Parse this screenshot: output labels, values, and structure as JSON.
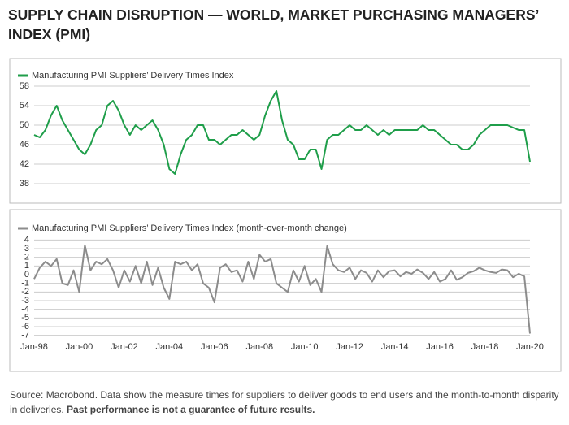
{
  "title": "SUPPLY CHAIN DISRUPTION — WORLD, MARKET PURCHASING MANAGERS’ INDEX (PMI)",
  "footer": {
    "source": "Source: Macrobond. Data show the measure times for suppliers to deliver goods to end users and the month-to-month disparity in deliveries.",
    "disclaimer": "Past performance is not a guarantee of future results."
  },
  "chart_data": [
    {
      "type": "line",
      "grid": true,
      "x": [
        1998,
        1998.25,
        1998.5,
        1998.75,
        1999,
        1999.25,
        1999.5,
        1999.75,
        2000,
        2000.25,
        2000.5,
        2000.75,
        2001,
        2001.25,
        2001.5,
        2001.75,
        2002,
        2002.25,
        2002.5,
        2002.75,
        2003,
        2003.25,
        2003.5,
        2003.75,
        2004,
        2004.25,
        2004.5,
        2004.75,
        2005,
        2005.25,
        2005.5,
        2005.75,
        2006,
        2006.25,
        2006.5,
        2006.75,
        2007,
        2007.25,
        2007.5,
        2007.75,
        2008,
        2008.25,
        2008.5,
        2008.75,
        2009,
        2009.25,
        2009.5,
        2009.75,
        2010,
        2010.25,
        2010.5,
        2010.75,
        2011,
        2011.25,
        2011.5,
        2011.75,
        2012,
        2012.25,
        2012.5,
        2012.75,
        2013,
        2013.25,
        2013.5,
        2013.75,
        2014,
        2014.25,
        2014.5,
        2014.75,
        2015,
        2015.25,
        2015.5,
        2015.75,
        2016,
        2016.25,
        2016.5,
        2016.75,
        2017,
        2017.25,
        2017.5,
        2017.75,
        2018,
        2018.25,
        2018.5,
        2018.75,
        2019,
        2019.25,
        2019.5,
        2019.75,
        2020
      ],
      "series": [
        {
          "name": "Manufacturing PMI Suppliers’ Delivery Times Index",
          "color": "#1f9e4a",
          "values": [
            48,
            47.5,
            49,
            52,
            54,
            51,
            49,
            47,
            45,
            44,
            46,
            49,
            50,
            54,
            55,
            53,
            50,
            48,
            50,
            49,
            50,
            51,
            49,
            46,
            41,
            40,
            44,
            47,
            48,
            50,
            50,
            47,
            47,
            46,
            47,
            48,
            48,
            49,
            48,
            47,
            48,
            52,
            55,
            57,
            51,
            47,
            46,
            43,
            43,
            45,
            45,
            41,
            47,
            48,
            48,
            49,
            50,
            49,
            49,
            50,
            49,
            48,
            49,
            48,
            49,
            49,
            49,
            49,
            49,
            50,
            49,
            49,
            48,
            47,
            46,
            46,
            45,
            45,
            46,
            48,
            49,
            50,
            50,
            50,
            50,
            49.5,
            49,
            49,
            42.5
          ]
        }
      ],
      "xlim": [
        1998,
        2020
      ],
      "ylim": [
        37,
        59
      ],
      "yticks": [
        38,
        42,
        46,
        50,
        54,
        58
      ]
    },
    {
      "type": "line",
      "grid": true,
      "x": [
        1998,
        1998.25,
        1998.5,
        1998.75,
        1999,
        1999.25,
        1999.5,
        1999.75,
        2000,
        2000.25,
        2000.5,
        2000.75,
        2001,
        2001.25,
        2001.5,
        2001.75,
        2002,
        2002.25,
        2002.5,
        2002.75,
        2003,
        2003.25,
        2003.5,
        2003.75,
        2004,
        2004.25,
        2004.5,
        2004.75,
        2005,
        2005.25,
        2005.5,
        2005.75,
        2006,
        2006.25,
        2006.5,
        2006.75,
        2007,
        2007.25,
        2007.5,
        2007.75,
        2008,
        2008.25,
        2008.5,
        2008.75,
        2009,
        2009.25,
        2009.5,
        2009.75,
        2010,
        2010.25,
        2010.5,
        2010.75,
        2011,
        2011.25,
        2011.5,
        2011.75,
        2012,
        2012.25,
        2012.5,
        2012.75,
        2013,
        2013.25,
        2013.5,
        2013.75,
        2014,
        2014.25,
        2014.5,
        2014.75,
        2015,
        2015.25,
        2015.5,
        2015.75,
        2016,
        2016.25,
        2016.5,
        2016.75,
        2017,
        2017.25,
        2017.5,
        2017.75,
        2018,
        2018.25,
        2018.5,
        2018.75,
        2019,
        2019.25,
        2019.5,
        2019.75,
        2020
      ],
      "series": [
        {
          "name": "Manufacturing PMI Suppliers’ Delivery Times Index (month-over-month change)",
          "color": "#8c8c8c",
          "values": [
            -0.5,
            0.8,
            1.5,
            1.0,
            1.8,
            -1.0,
            -1.2,
            0.5,
            -2.0,
            3.4,
            0.5,
            1.5,
            1.2,
            1.8,
            0.5,
            -1.5,
            0.5,
            -0.8,
            1.0,
            -1.0,
            1.5,
            -1.2,
            0.8,
            -1.5,
            -2.8,
            1.5,
            1.2,
            1.5,
            0.5,
            1.2,
            -1.0,
            -1.5,
            -3.2,
            0.8,
            1.2,
            0.3,
            0.5,
            -0.8,
            1.5,
            -0.5,
            2.3,
            1.5,
            1.8,
            -1.0,
            -1.5,
            -2.0,
            0.5,
            -0.8,
            1.0,
            -1.2,
            -0.5,
            -2.0,
            3.3,
            1.2,
            0.5,
            0.3,
            0.8,
            -0.5,
            0.5,
            0.2,
            -0.8,
            0.5,
            -0.3,
            0.4,
            0.5,
            -0.2,
            0.3,
            0.1,
            0.6,
            0.2,
            -0.5,
            0.3,
            -0.8,
            -0.5,
            0.5,
            -0.6,
            -0.3,
            0.2,
            0.4,
            0.8,
            0.5,
            0.3,
            0.2,
            0.6,
            0.5,
            -0.3,
            0.1,
            -0.2,
            -6.8
          ]
        }
      ],
      "xlim": [
        1998,
        2020
      ],
      "ylim": [
        -7.5,
        4.5
      ],
      "yticks": [
        -7,
        -6,
        -5,
        -4,
        -3,
        -2,
        -1,
        0,
        1,
        2,
        3,
        4
      ],
      "xticks": [
        {
          "value": 1998,
          "label": "Jan-98"
        },
        {
          "value": 2000,
          "label": "Jan-00"
        },
        {
          "value": 2002,
          "label": "Jan-02"
        },
        {
          "value": 2004,
          "label": "Jan-04"
        },
        {
          "value": 2006,
          "label": "Jan-06"
        },
        {
          "value": 2008,
          "label": "Jan-08"
        },
        {
          "value": 2010,
          "label": "Jan-10"
        },
        {
          "value": 2012,
          "label": "Jan-12"
        },
        {
          "value": 2014,
          "label": "Jan-14"
        },
        {
          "value": 2016,
          "label": "Jan-16"
        },
        {
          "value": 2018,
          "label": "Jan-18"
        },
        {
          "value": 2020,
          "label": "Jan-20"
        }
      ]
    }
  ]
}
